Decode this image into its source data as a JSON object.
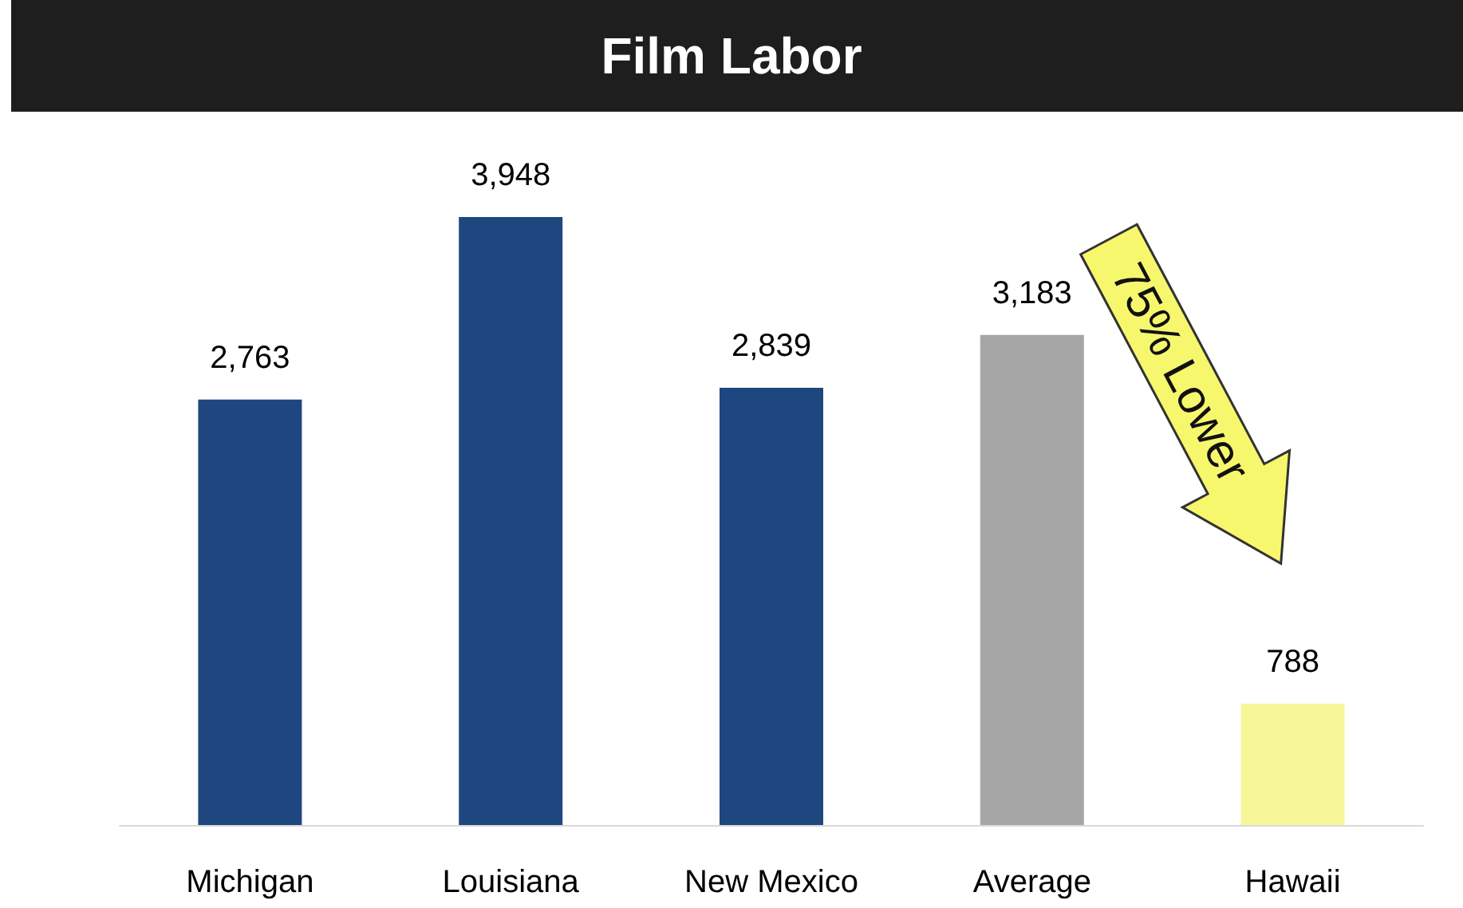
{
  "chart_data": {
    "type": "bar",
    "title": "Film Labor",
    "categories": [
      "Michigan",
      "Louisiana",
      "New Mexico",
      "Average",
      "Hawaii"
    ],
    "values": [
      2763,
      3948,
      2839,
      3183,
      788
    ],
    "colors": [
      "#1f477f",
      "#1f477f",
      "#1f477f",
      "#a6a6a6",
      "#f7f79a"
    ],
    "data_labels": true,
    "value_labels": [
      "2,763",
      "3,948",
      "2,839",
      "3,183",
      "788"
    ],
    "annotations": [
      "75% Lower"
    ]
  }
}
